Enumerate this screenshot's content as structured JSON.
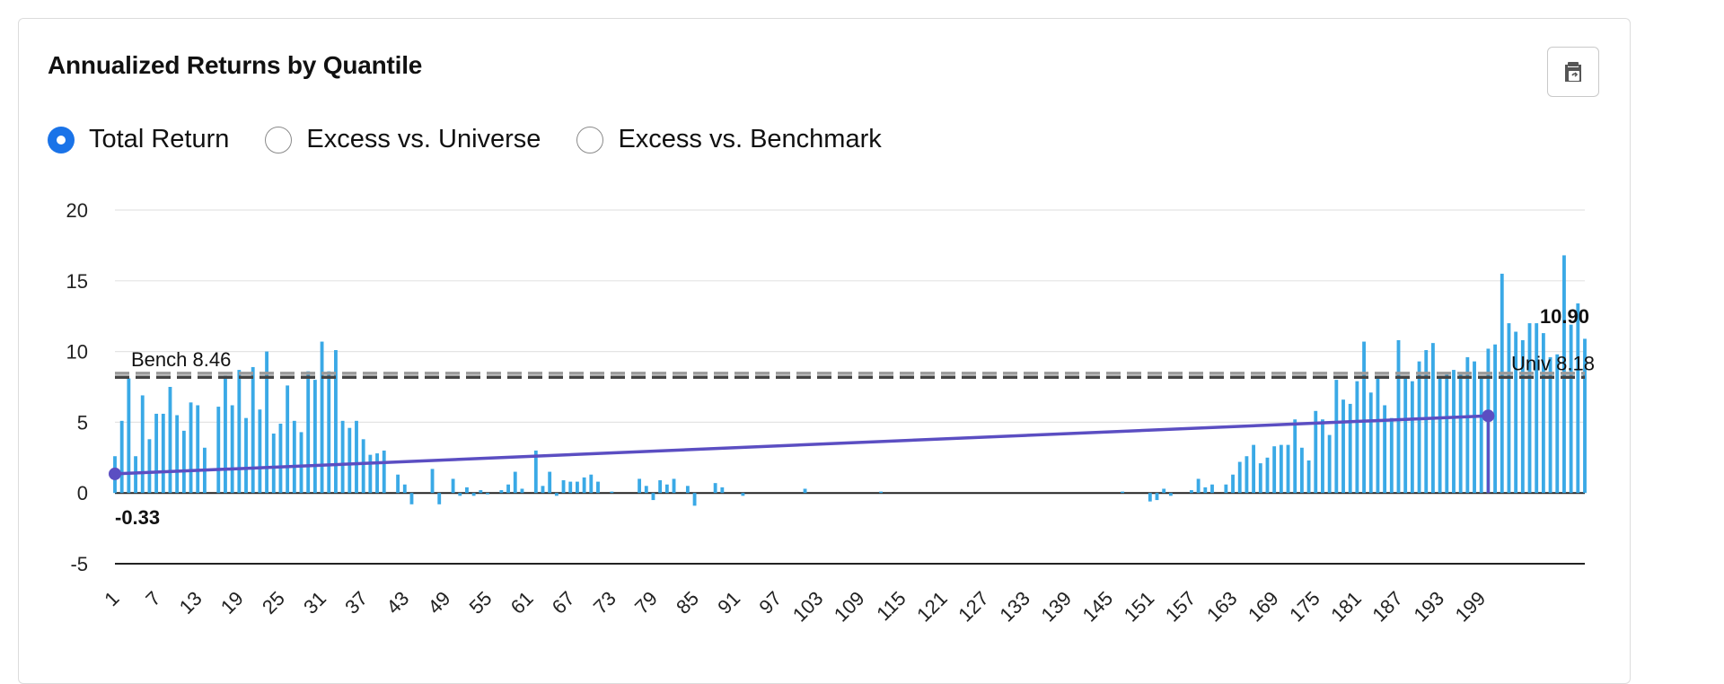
{
  "header": {
    "title": "Annualized Returns by Quantile"
  },
  "toolbar": {
    "copy_icon": "copy-clipboard-icon"
  },
  "options": [
    {
      "label": "Total Return",
      "selected": true
    },
    {
      "label": "Excess vs. Universe",
      "selected": false
    },
    {
      "label": "Excess vs. Benchmark",
      "selected": false
    }
  ],
  "colors": {
    "bars": "#3aa9e6",
    "trend": "#5b4ec2",
    "bench": "#9a9a9a",
    "univ": "#444444",
    "accent": "#1a73e8"
  },
  "chart_data": {
    "type": "bar",
    "title": "Annualized Returns by Quantile",
    "xlabel": "",
    "ylabel": "",
    "ylim": [
      -5,
      20
    ],
    "yticks": [
      20,
      15,
      10,
      5,
      0,
      -5
    ],
    "xticks": [
      "1",
      "7",
      "13",
      "19",
      "25",
      "31",
      "37",
      "43",
      "49",
      "55",
      "61",
      "67",
      "73",
      "79",
      "85",
      "91",
      "97",
      "103",
      "109",
      "115",
      "121",
      "127",
      "133",
      "139",
      "145",
      "151",
      "157",
      "163",
      "169",
      "175",
      "181",
      "187",
      "193",
      "199"
    ],
    "values": [
      2.6,
      5.1,
      8.1,
      2.6,
      6.9,
      3.8,
      5.6,
      5.6,
      7.5,
      5.5,
      4.4,
      6.4,
      6.2,
      3.2,
      0,
      6.1,
      8.3,
      6.2,
      8.7,
      5.3,
      8.9,
      5.9,
      10.0,
      4.2,
      4.9,
      7.6,
      5.1,
      4.3,
      8.6,
      8.0,
      10.7,
      8.6,
      10.1,
      5.1,
      4.6,
      5.1,
      3.8,
      2.7,
      2.8,
      3.0,
      0,
      1.3,
      0.6,
      -0.8,
      0,
      0,
      1.7,
      -0.8,
      0,
      1.0,
      -0.2,
      0.4,
      -0.2,
      0.2,
      -0.1,
      0,
      0.2,
      0.6,
      1.5,
      0.3,
      0,
      3.0,
      0.5,
      1.5,
      -0.2,
      0.9,
      0.8,
      0.8,
      1.1,
      1.3,
      0.8,
      0,
      0.1,
      0,
      0,
      0,
      1.0,
      0.5,
      -0.5,
      0.9,
      0.6,
      1.0,
      0,
      0.5,
      -0.9,
      0,
      0,
      0.7,
      0.4,
      0,
      0,
      -0.2,
      0,
      0,
      0,
      0,
      0,
      0,
      0,
      0,
      0.3,
      0,
      0,
      0,
      0,
      0,
      0,
      0,
      0,
      0,
      0,
      0.1,
      0,
      0,
      0,
      0,
      0,
      0,
      0,
      0,
      0,
      0,
      0,
      0,
      0,
      0,
      0,
      0,
      0,
      0,
      0,
      0,
      0,
      0,
      0,
      0,
      0,
      0,
      0,
      0,
      0,
      0,
      0,
      0,
      0,
      0,
      0.1,
      0,
      0,
      0,
      -0.6,
      -0.5,
      0.3,
      -0.2,
      0,
      0,
      0.2,
      1.0,
      0.4,
      0.6,
      0,
      0.6,
      1.3,
      2.2,
      2.6,
      3.4,
      2.1,
      2.5,
      3.3,
      3.4,
      3.4,
      5.2,
      3.2,
      2.3,
      5.8,
      5.2,
      4.1,
      8.0,
      6.6,
      6.3,
      7.9,
      10.7,
      7.1,
      8.1,
      6.2,
      5.3,
      10.8,
      8.2,
      7.9,
      9.3,
      10.1,
      10.6,
      8.2,
      8.4,
      8.7,
      8.5,
      9.6,
      9.3,
      8.1,
      10.2,
      10.5,
      15.5,
      12.0,
      11.4,
      10.8,
      12.0,
      12.0,
      11.3,
      9.6,
      9.8,
      16.8,
      11.9,
      13.4,
      10.9
    ],
    "series": [
      {
        "name": "Bench",
        "type": "hline",
        "value": 8.46,
        "label": "Bench 8.46",
        "style": "dashed"
      },
      {
        "name": "Univ",
        "type": "hline",
        "value": 8.18,
        "label": "Univ 8.18",
        "style": "dashed"
      },
      {
        "name": "",
        "type": "line",
        "x": [
          1,
          200
        ],
        "y": [
          1.35,
          5.45
        ]
      }
    ],
    "annotations": [
      {
        "text": "-0.33",
        "position": "bottom-left"
      },
      {
        "text": "10.90",
        "position": "top-right"
      }
    ],
    "grid": true,
    "legend": "none"
  }
}
